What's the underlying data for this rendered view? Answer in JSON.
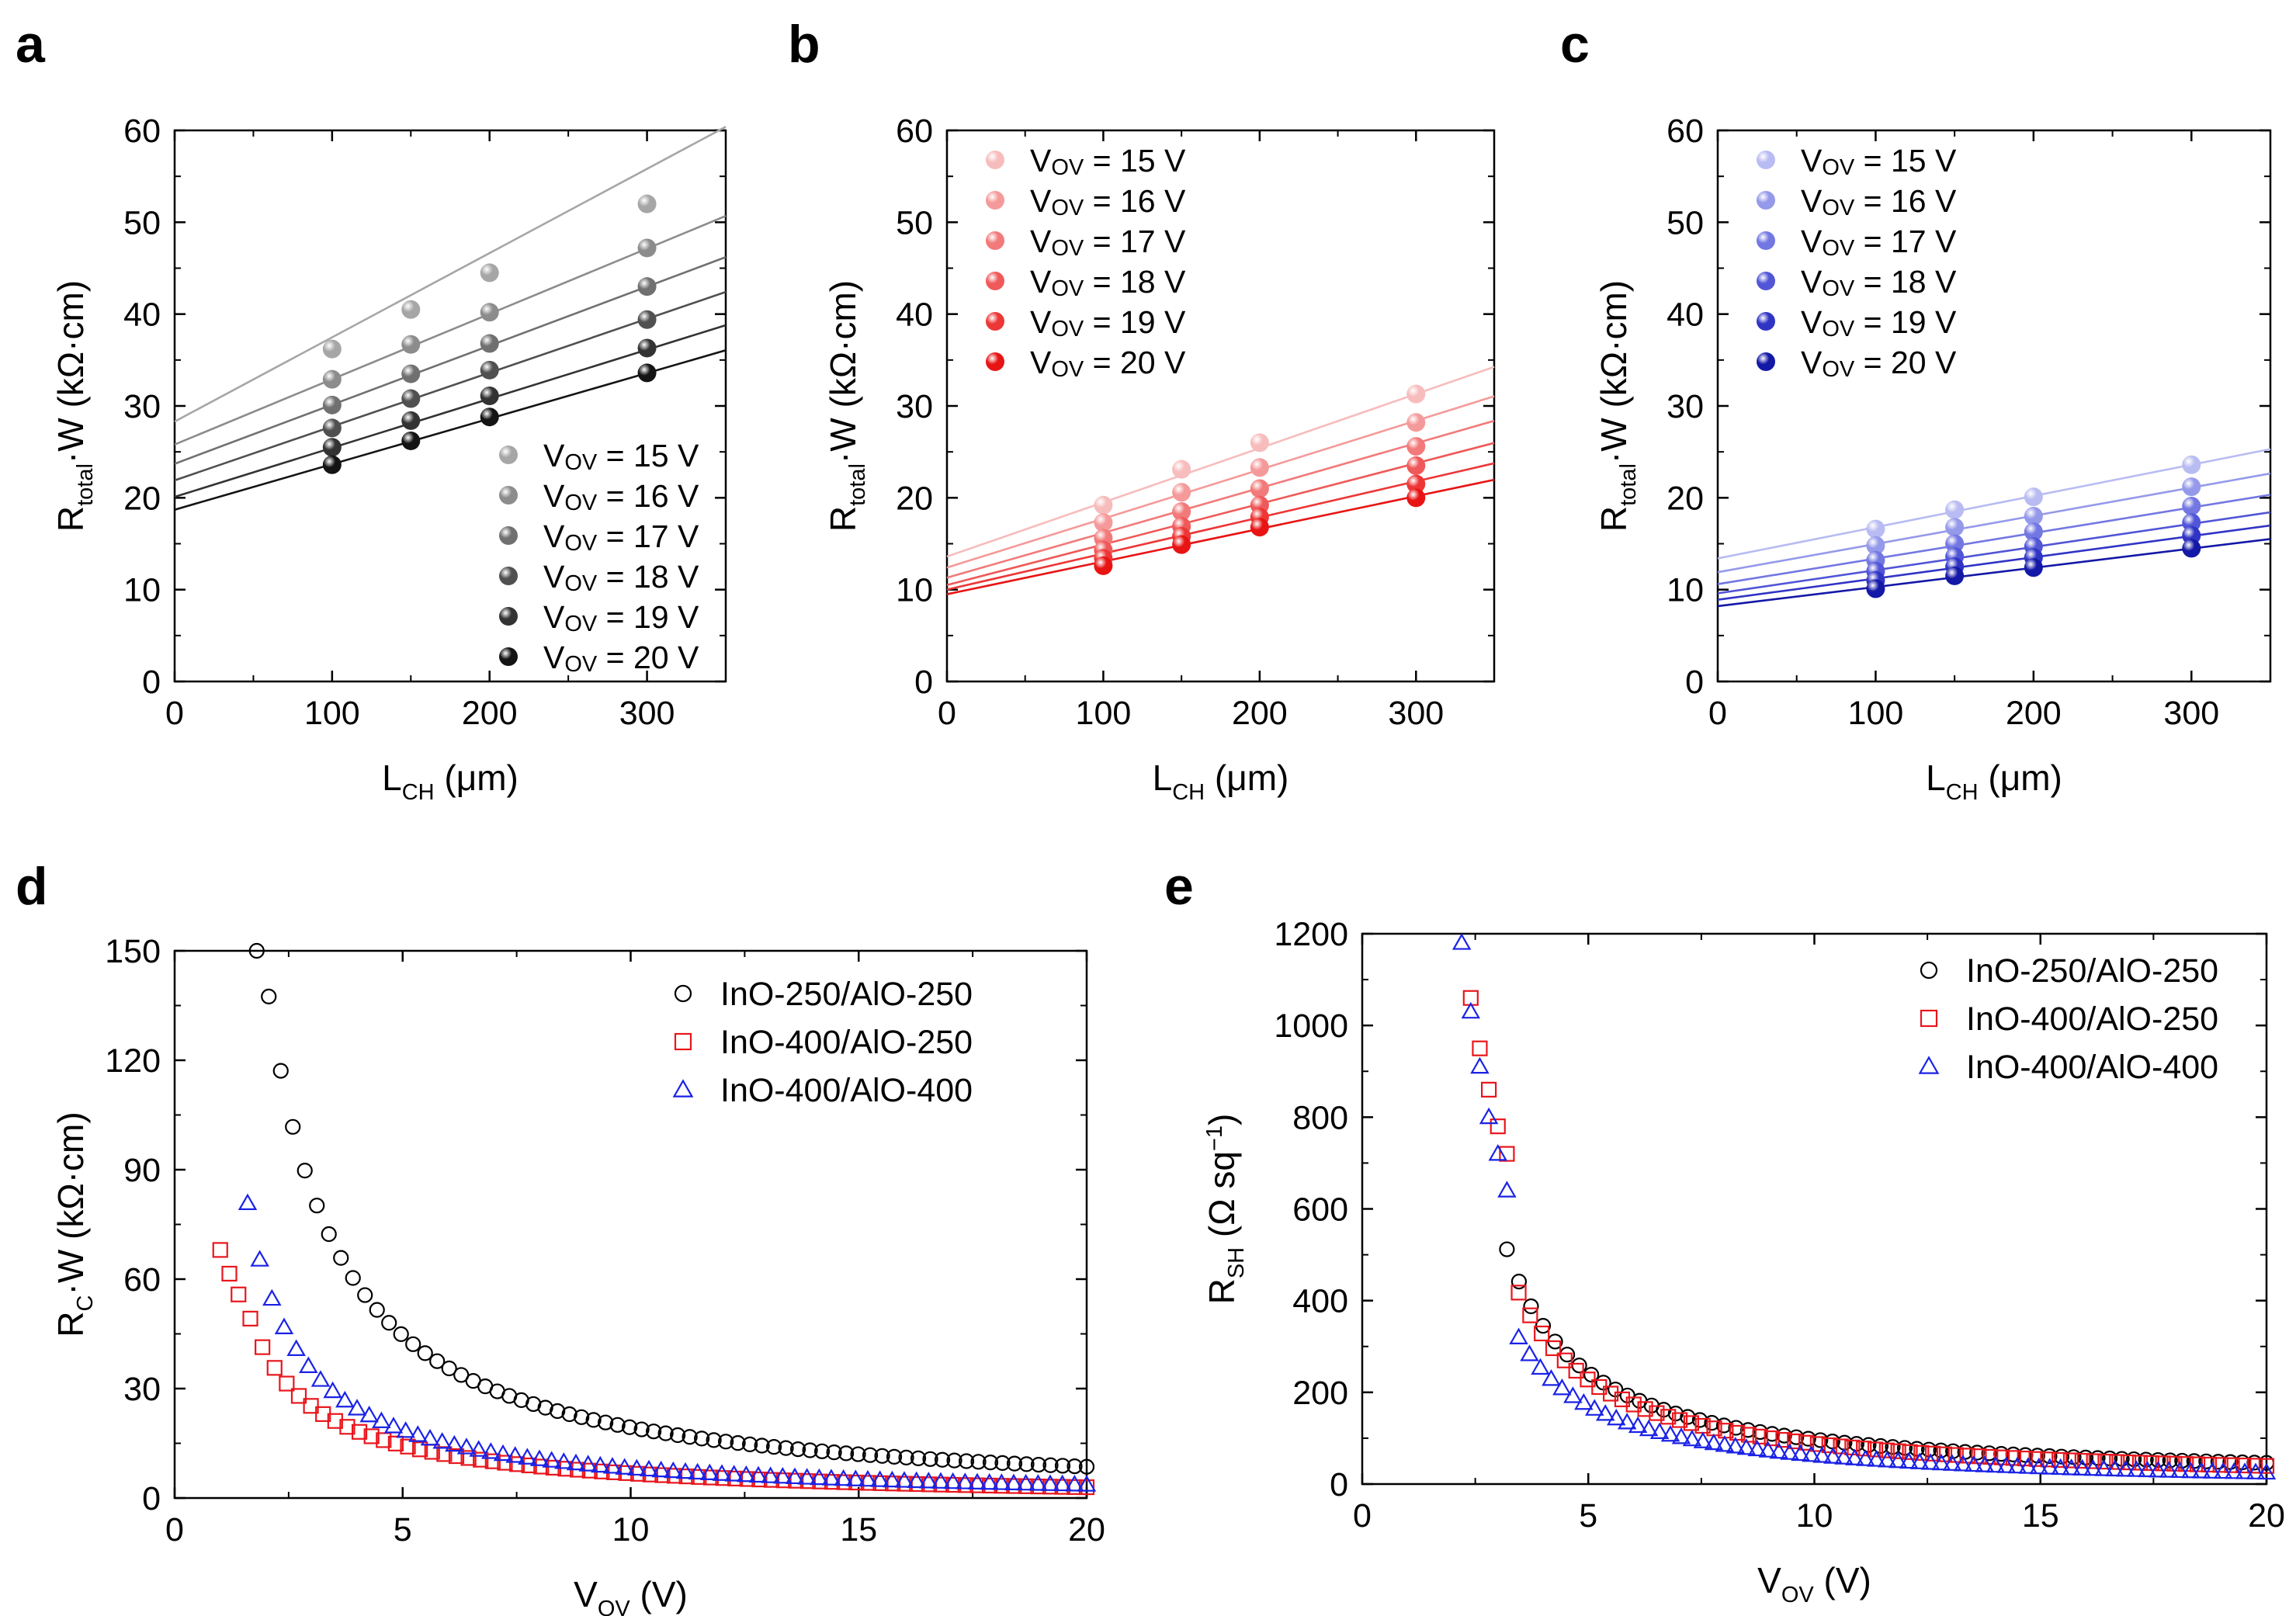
{
  "chart_data": [
    {
      "panel": "a",
      "type": "scatter",
      "xlabel": {
        "main": "L",
        "sub": "CH",
        "unit": " (μm)"
      },
      "ylabel": {
        "main": "R",
        "sub": "total",
        "unit": "·W (kΩ·cm)"
      },
      "xlim": [
        0,
        350
      ],
      "ylim": [
        0,
        60
      ],
      "xticks": [
        0,
        100,
        200,
        300
      ],
      "yticks": [
        0,
        10,
        20,
        30,
        40,
        50,
        60
      ],
      "x": [
        100,
        150,
        200,
        300
      ],
      "legend_position": "bottom-right",
      "series": [
        {
          "name": "15",
          "values": [
            36.2,
            40.5,
            44.5,
            52.0
          ],
          "fit": [
            28.3,
            0.0917
          ],
          "color": "#a6a6a6"
        },
        {
          "name": "16",
          "values": [
            32.9,
            36.7,
            40.2,
            47.2
          ],
          "fit": [
            25.8,
            0.0711
          ],
          "color": "#8c8c8c"
        },
        {
          "name": "17",
          "values": [
            30.1,
            33.5,
            36.8,
            43.0
          ],
          "fit": [
            23.7,
            0.0643
          ],
          "color": "#707070"
        },
        {
          "name": "18",
          "values": [
            27.6,
            30.8,
            33.9,
            39.4
          ],
          "fit": [
            21.9,
            0.0586
          ],
          "color": "#505050"
        },
        {
          "name": "19",
          "values": [
            25.5,
            28.4,
            31.1,
            36.3
          ],
          "fit": [
            20.1,
            0.0534
          ],
          "color": "#333333"
        },
        {
          "name": "20",
          "values": [
            23.6,
            26.2,
            28.8,
            33.6
          ],
          "fit": [
            18.7,
            0.0496
          ],
          "color": "#141414"
        }
      ],
      "legend_prefix": "V",
      "legend_sub": "OV",
      "legend_suffix": " = ",
      "legend_unit": " V"
    },
    {
      "panel": "b",
      "type": "scatter",
      "xlabel": {
        "main": "L",
        "sub": "CH",
        "unit": " (μm)"
      },
      "ylabel": {
        "main": "R",
        "sub": "total",
        "unit": "·W (kΩ·cm)"
      },
      "xlim": [
        0,
        350
      ],
      "ylim": [
        0,
        60
      ],
      "xticks": [
        0,
        100,
        200,
        300
      ],
      "yticks": [
        0,
        10,
        20,
        30,
        40,
        50,
        60
      ],
      "x": [
        100,
        150,
        200,
        300
      ],
      "legend_position": "top-left",
      "series": [
        {
          "name": "15",
          "values": [
            19.2,
            23.1,
            26.0,
            31.3
          ],
          "fit": [
            13.6,
            0.059
          ],
          "color": "#f7bcbc"
        },
        {
          "name": "16",
          "values": [
            17.3,
            20.6,
            23.3,
            28.2
          ],
          "fit": [
            12.4,
            0.0533
          ],
          "color": "#f59a9a"
        },
        {
          "name": "17",
          "values": [
            15.6,
            18.5,
            21.0,
            25.6
          ],
          "fit": [
            11.3,
            0.0488
          ],
          "color": "#f27a7a"
        },
        {
          "name": "18",
          "values": [
            14.3,
            16.9,
            19.2,
            23.5
          ],
          "fit": [
            10.5,
            0.0442
          ],
          "color": "#ef5959"
        },
        {
          "name": "19",
          "values": [
            13.4,
            15.8,
            17.9,
            21.5
          ],
          "fit": [
            10.0,
            0.0393
          ],
          "color": "#ed3636"
        },
        {
          "name": "20",
          "values": [
            12.6,
            14.9,
            16.8,
            20.0
          ],
          "fit": [
            9.5,
            0.0356
          ],
          "color": "#e81414"
        }
      ],
      "legend_prefix": "V",
      "legend_sub": "OV",
      "legend_suffix": " = ",
      "legend_unit": " V"
    },
    {
      "panel": "c",
      "type": "scatter",
      "xlabel": {
        "main": "L",
        "sub": "CH",
        "unit": " (μm)"
      },
      "ylabel": {
        "main": "R",
        "sub": "total",
        "unit": "·W (kΩ·cm)"
      },
      "xlim": [
        0,
        350
      ],
      "ylim": [
        0,
        60
      ],
      "xticks": [
        0,
        100,
        200,
        300
      ],
      "yticks": [
        0,
        10,
        20,
        30,
        40,
        50,
        60
      ],
      "x": [
        100,
        150,
        200,
        300
      ],
      "legend_position": "top-left",
      "series": [
        {
          "name": "15",
          "values": [
            16.6,
            18.7,
            20.1,
            23.6
          ],
          "fit": [
            13.4,
            0.034
          ],
          "color": "#b9bcf2"
        },
        {
          "name": "16",
          "values": [
            14.8,
            16.8,
            18.0,
            21.2
          ],
          "fit": [
            11.9,
            0.0307
          ],
          "color": "#9599ea"
        },
        {
          "name": "17",
          "values": [
            13.2,
            15.0,
            16.3,
            19.1
          ],
          "fit": [
            10.6,
            0.0278
          ],
          "color": "#7377e2"
        },
        {
          "name": "18",
          "values": [
            12.0,
            13.6,
            14.7,
            17.3
          ],
          "fit": [
            9.6,
            0.0252
          ],
          "color": "#5155d6"
        },
        {
          "name": "19",
          "values": [
            11.0,
            12.5,
            13.5,
            15.9
          ],
          "fit": [
            8.9,
            0.0231
          ],
          "color": "#3034c4"
        },
        {
          "name": "20",
          "values": [
            10.1,
            11.5,
            12.4,
            14.5
          ],
          "fit": [
            8.2,
            0.0209
          ],
          "color": "#1418a6"
        }
      ],
      "legend_prefix": "V",
      "legend_sub": "OV",
      "legend_suffix": " = ",
      "legend_unit": " V"
    },
    {
      "panel": "d",
      "type": "scatter",
      "xlabel": {
        "main": "V",
        "sub": "OV",
        "unit": " (V)"
      },
      "ylabel": {
        "main": "R",
        "sub": "C",
        "unit": "·W (kΩ·cm)"
      },
      "xlim": [
        0,
        20
      ],
      "ylim": [
        0,
        150
      ],
      "xticks": [
        0,
        5,
        10,
        15,
        20
      ],
      "yticks": [
        0,
        30,
        60,
        90,
        120,
        150
      ],
      "legend_position": "top-right",
      "series": [
        {
          "name": "InO-250/AlO-250",
          "marker": "circle",
          "color": "#000000",
          "model": "power",
          "x_start": 1.8,
          "x_end": 20.0,
          "points": 70,
          "x0": 0.3,
          "a": 264,
          "k": 1.15,
          "c": 0
        },
        {
          "name": "InO-400/AlO-250",
          "marker": "square",
          "color": "#e8161c",
          "model": "power",
          "x_start": 1.6,
          "x_end": 20.0,
          "points": 70,
          "x0": 0.3,
          "a": 67.2,
          "k": 0.95,
          "c": -1,
          "extra_points": [
            [
              1.0,
              68.0
            ],
            [
              1.2,
              61.5
            ],
            [
              1.4,
              55.8
            ]
          ]
        },
        {
          "name": "InO-400/AlO-400",
          "marker": "triangle",
          "color": "#1a22e6",
          "model": "power",
          "x_start": 1.6,
          "x_end": 20.0,
          "points": 70,
          "x0": 0.3,
          "a": 109,
          "k": 1.14,
          "c": 0
        }
      ]
    },
    {
      "panel": "e",
      "type": "scatter",
      "xlabel": {
        "main": "V",
        "sub": "OV",
        "unit": " (V)"
      },
      "ylabel": {
        "main": "R",
        "sub": "SH",
        "unit": " (Ω sq",
        "sup": "−1",
        "close": ")"
      },
      "xlim": [
        0,
        20
      ],
      "ylim": [
        0,
        1200
      ],
      "xticks": [
        0,
        5,
        10,
        15,
        20
      ],
      "yticks": [
        0,
        200,
        400,
        600,
        800,
        1000,
        1200
      ],
      "legend_position": "top-right",
      "series": [
        {
          "name": "InO-250/AlO-250",
          "marker": "circle",
          "color": "#000000",
          "model": "power",
          "x_start": 3.2,
          "x_end": 20.0,
          "points": 64,
          "x0": 1.3,
          "a": 1050,
          "k": 1.15,
          "c": 10
        },
        {
          "name": "InO-400/AlO-250",
          "marker": "square",
          "color": "#e8161c",
          "model": "power",
          "x_start": 2.4,
          "x_end": 20.0,
          "points": 66,
          "x0": 1.3,
          "a": 1000,
          "k": 1.15,
          "c": 5,
          "extra_points": [
            [
              2.4,
              1060
            ],
            [
              2.6,
              950
            ],
            [
              2.8,
              860
            ],
            [
              3.0,
              780
            ],
            [
              3.2,
              720
            ]
          ]
        },
        {
          "name": "InO-400/AlO-400",
          "marker": "triangle",
          "color": "#1a22e6",
          "model": "power",
          "x_start": 2.2,
          "x_end": 20.0,
          "points": 70,
          "x0": 1.3,
          "a": 780,
          "k": 1.15,
          "c": -2,
          "extra_points": [
            [
              2.2,
              1180
            ],
            [
              2.4,
              1030
            ],
            [
              2.6,
              910
            ],
            [
              2.8,
              800
            ],
            [
              3.0,
              720
            ],
            [
              3.2,
              640
            ]
          ]
        }
      ]
    }
  ]
}
